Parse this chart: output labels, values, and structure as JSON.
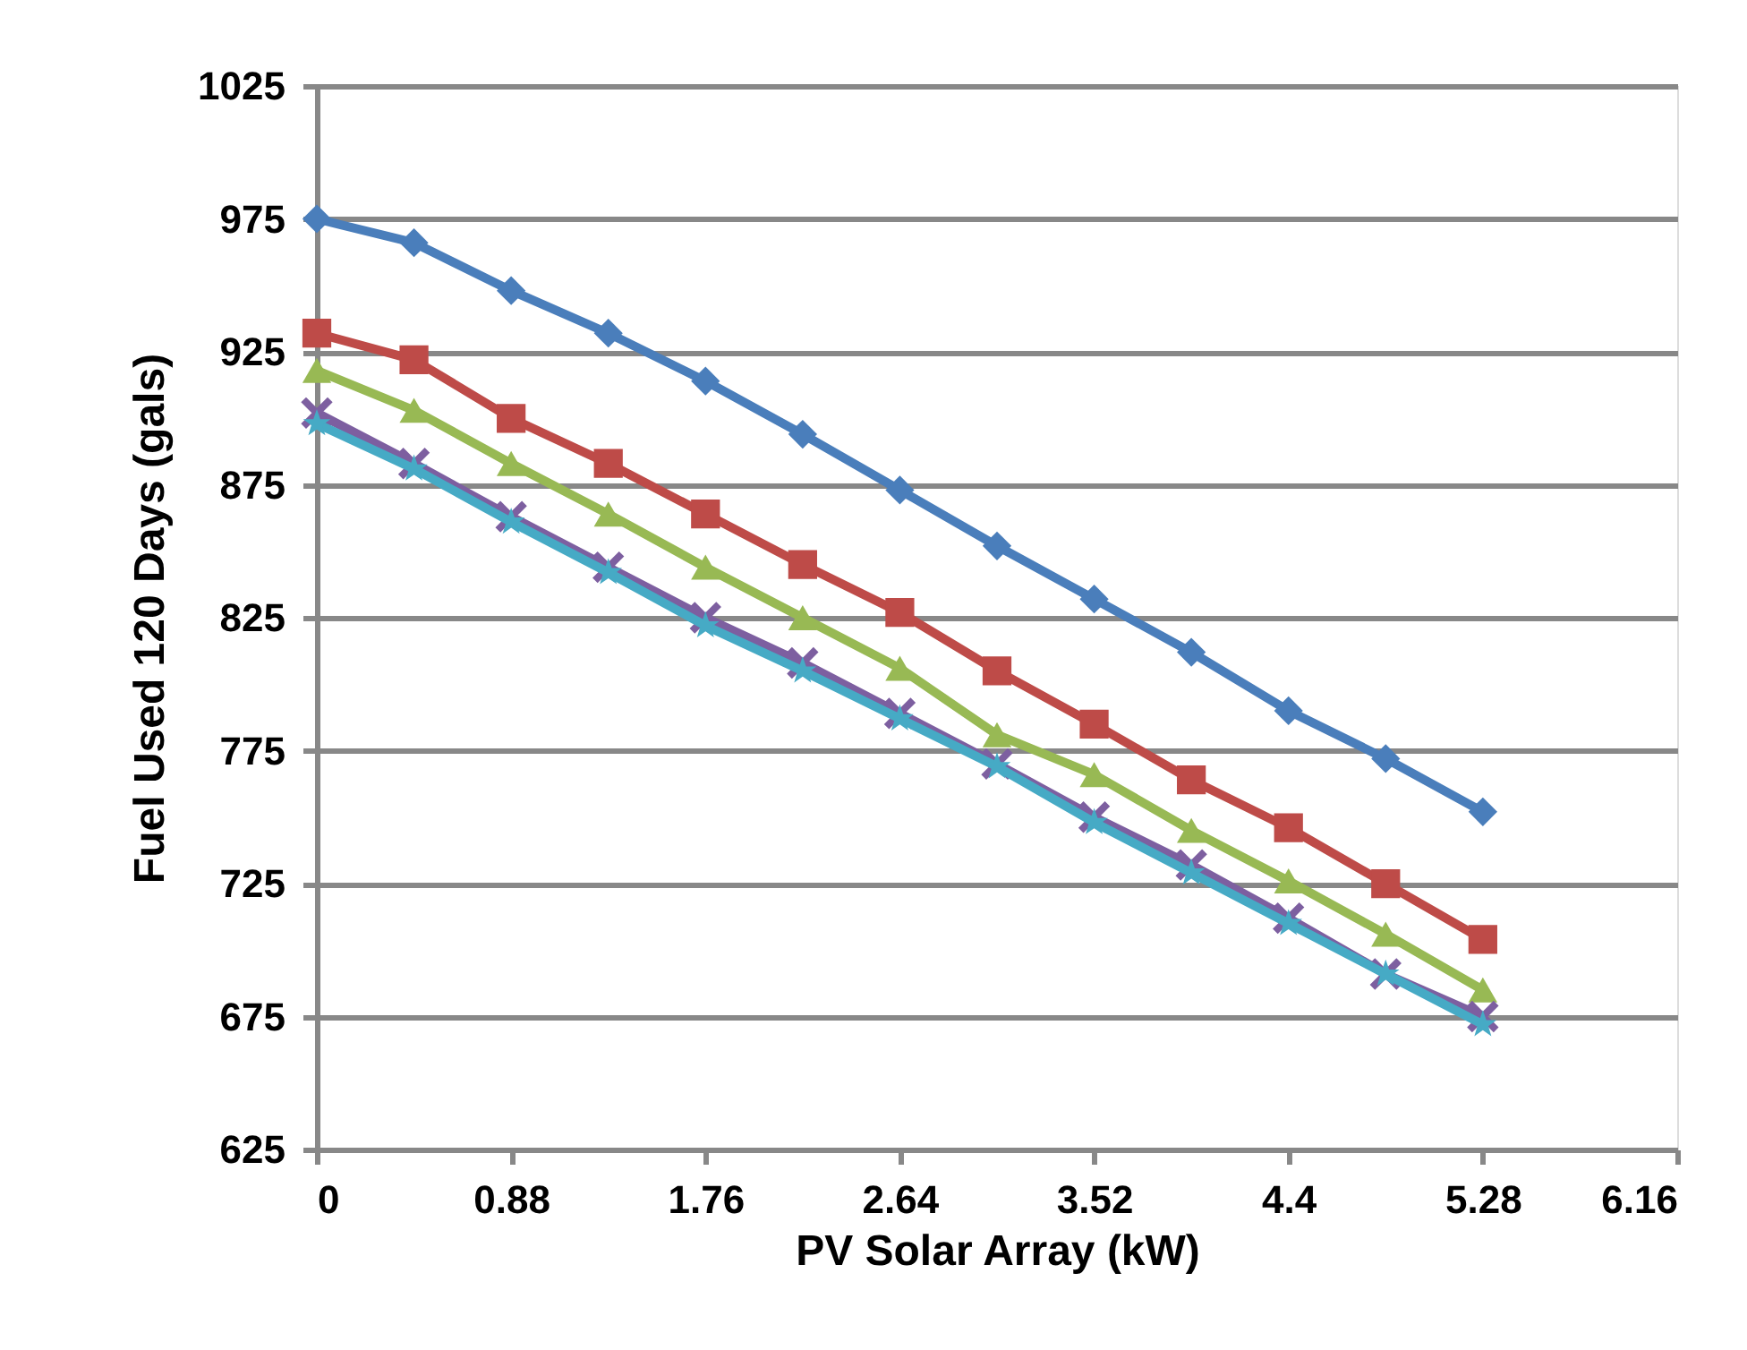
{
  "chart_data": {
    "type": "line",
    "xlabel": "PV Solar Array (kW)",
    "ylabel": "Fuel Used 120 Days (gals)",
    "x": [
      0,
      0.44,
      0.88,
      1.32,
      1.76,
      2.2,
      2.64,
      3.08,
      3.52,
      3.96,
      4.4,
      4.84,
      5.28
    ],
    "xlim": [
      0,
      6.16
    ],
    "xticks": [
      0,
      0.88,
      1.76,
      2.64,
      3.52,
      4.4,
      5.28,
      6.16
    ],
    "ylim": [
      625,
      1025
    ],
    "yticks": [
      625,
      675,
      725,
      775,
      825,
      875,
      925,
      975,
      1025
    ],
    "grid": "y",
    "series": [
      {
        "color": "#4a7ebb",
        "marker": "diamond",
        "values": [
          975,
          966,
          948,
          932,
          914,
          894,
          873,
          852,
          832,
          812,
          790,
          772,
          752
        ]
      },
      {
        "color": "#be4b48",
        "marker": "square",
        "values": [
          932,
          922,
          900,
          883,
          864,
          845,
          827,
          805,
          785,
          764,
          746,
          725,
          704
        ]
      },
      {
        "color": "#98b954",
        "marker": "triangle",
        "values": [
          918,
          903,
          883,
          864,
          844,
          825,
          806,
          781,
          766,
          745,
          726,
          706,
          685
        ]
      },
      {
        "color": "#7d5fa0",
        "marker": "cross",
        "values": [
          902,
          883,
          863,
          844,
          825,
          808,
          789,
          770,
          750,
          732,
          712,
          691,
          675
        ]
      },
      {
        "color": "#46aac5",
        "marker": "star",
        "values": [
          898,
          881,
          861,
          842,
          822,
          805,
          787,
          769,
          748,
          729,
          710,
          691,
          672
        ]
      }
    ]
  }
}
